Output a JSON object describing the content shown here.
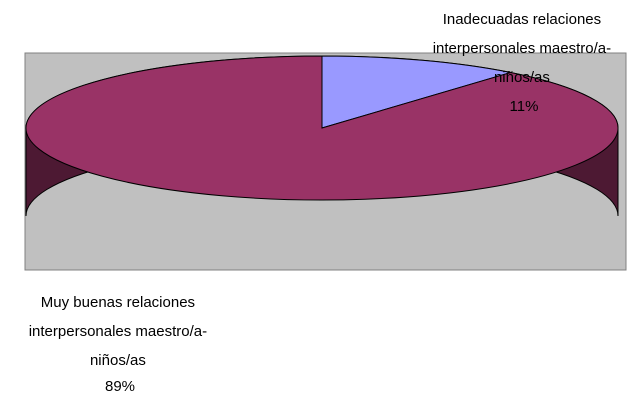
{
  "chart_data": {
    "type": "pie",
    "title": "",
    "slices": [
      {
        "label_lines": [
          "Inadecuadas relaciones",
          "interpersonales maestro/a-",
          "niños/as"
        ],
        "percent_label": "11%",
        "value": 11,
        "color": "#9999ff",
        "side_color": "#4d4d80"
      },
      {
        "label_lines": [
          "Muy buenas relaciones",
          "interpersonales maestro/a-",
          "niños/as"
        ],
        "percent_label": "89%",
        "value": 89,
        "color": "#993366",
        "side_color": "#4d1933"
      }
    ],
    "style": "3d",
    "plot_area_color": "#c0c0c0",
    "legend": "none"
  }
}
